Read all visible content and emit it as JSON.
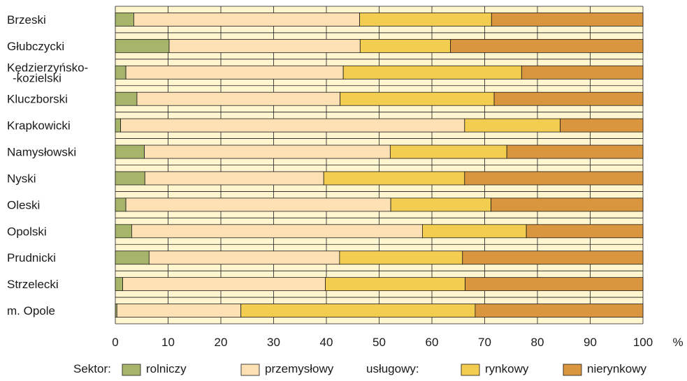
{
  "chart_data": {
    "type": "bar",
    "orientation": "horizontal",
    "stacked": true,
    "categories": [
      "Brzeski",
      "Głubczycki",
      "Kędzierzyńsko-\n-kozielski",
      "Kluczborski",
      "Krapkowicki",
      "Namysłowski",
      "Nyski",
      "Oleski",
      "Opolski",
      "Prudnicki",
      "Strzelecki",
      "m. Opole"
    ],
    "series": [
      {
        "name": "rolniczy",
        "color": "#a6b56a",
        "values": [
          3.5,
          10.2,
          2.0,
          4.1,
          1.0,
          5.5,
          5.6,
          2.0,
          3.1,
          6.4,
          1.4,
          0.3
        ]
      },
      {
        "name": "przemysłowy",
        "color": "#fde1b5",
        "values": [
          42.8,
          36.2,
          41.2,
          38.5,
          65.2,
          46.6,
          33.9,
          50.2,
          55.1,
          36.1,
          38.4,
          23.5
        ]
      },
      {
        "name": "rynkowy",
        "color": "#f2cd50",
        "values": [
          25.0,
          17.1,
          33.8,
          29.2,
          18.1,
          22.1,
          26.7,
          19.0,
          19.7,
          23.3,
          26.5,
          44.4
        ]
      },
      {
        "name": "nierynkowy",
        "color": "#d9963e",
        "values": [
          28.7,
          36.5,
          23.0,
          28.2,
          15.7,
          25.8,
          33.8,
          28.8,
          22.1,
          34.2,
          33.7,
          31.8
        ]
      }
    ],
    "xlim": [
      0,
      100
    ],
    "x_ticks": [
      "0",
      "10",
      "20",
      "30",
      "40",
      "50",
      "60",
      "70",
      "80",
      "90",
      "100"
    ],
    "x_unit": "%",
    "grid": true,
    "plot_background": "#fff6d0",
    "grid_color": "#1a1a1a",
    "legend": {
      "position": "bottom",
      "title": "Sektor:",
      "group_label": "usługowy:",
      "entries": [
        "rolniczy",
        "przemysłowy",
        "rynkowy",
        "nierynkowy"
      ]
    }
  }
}
